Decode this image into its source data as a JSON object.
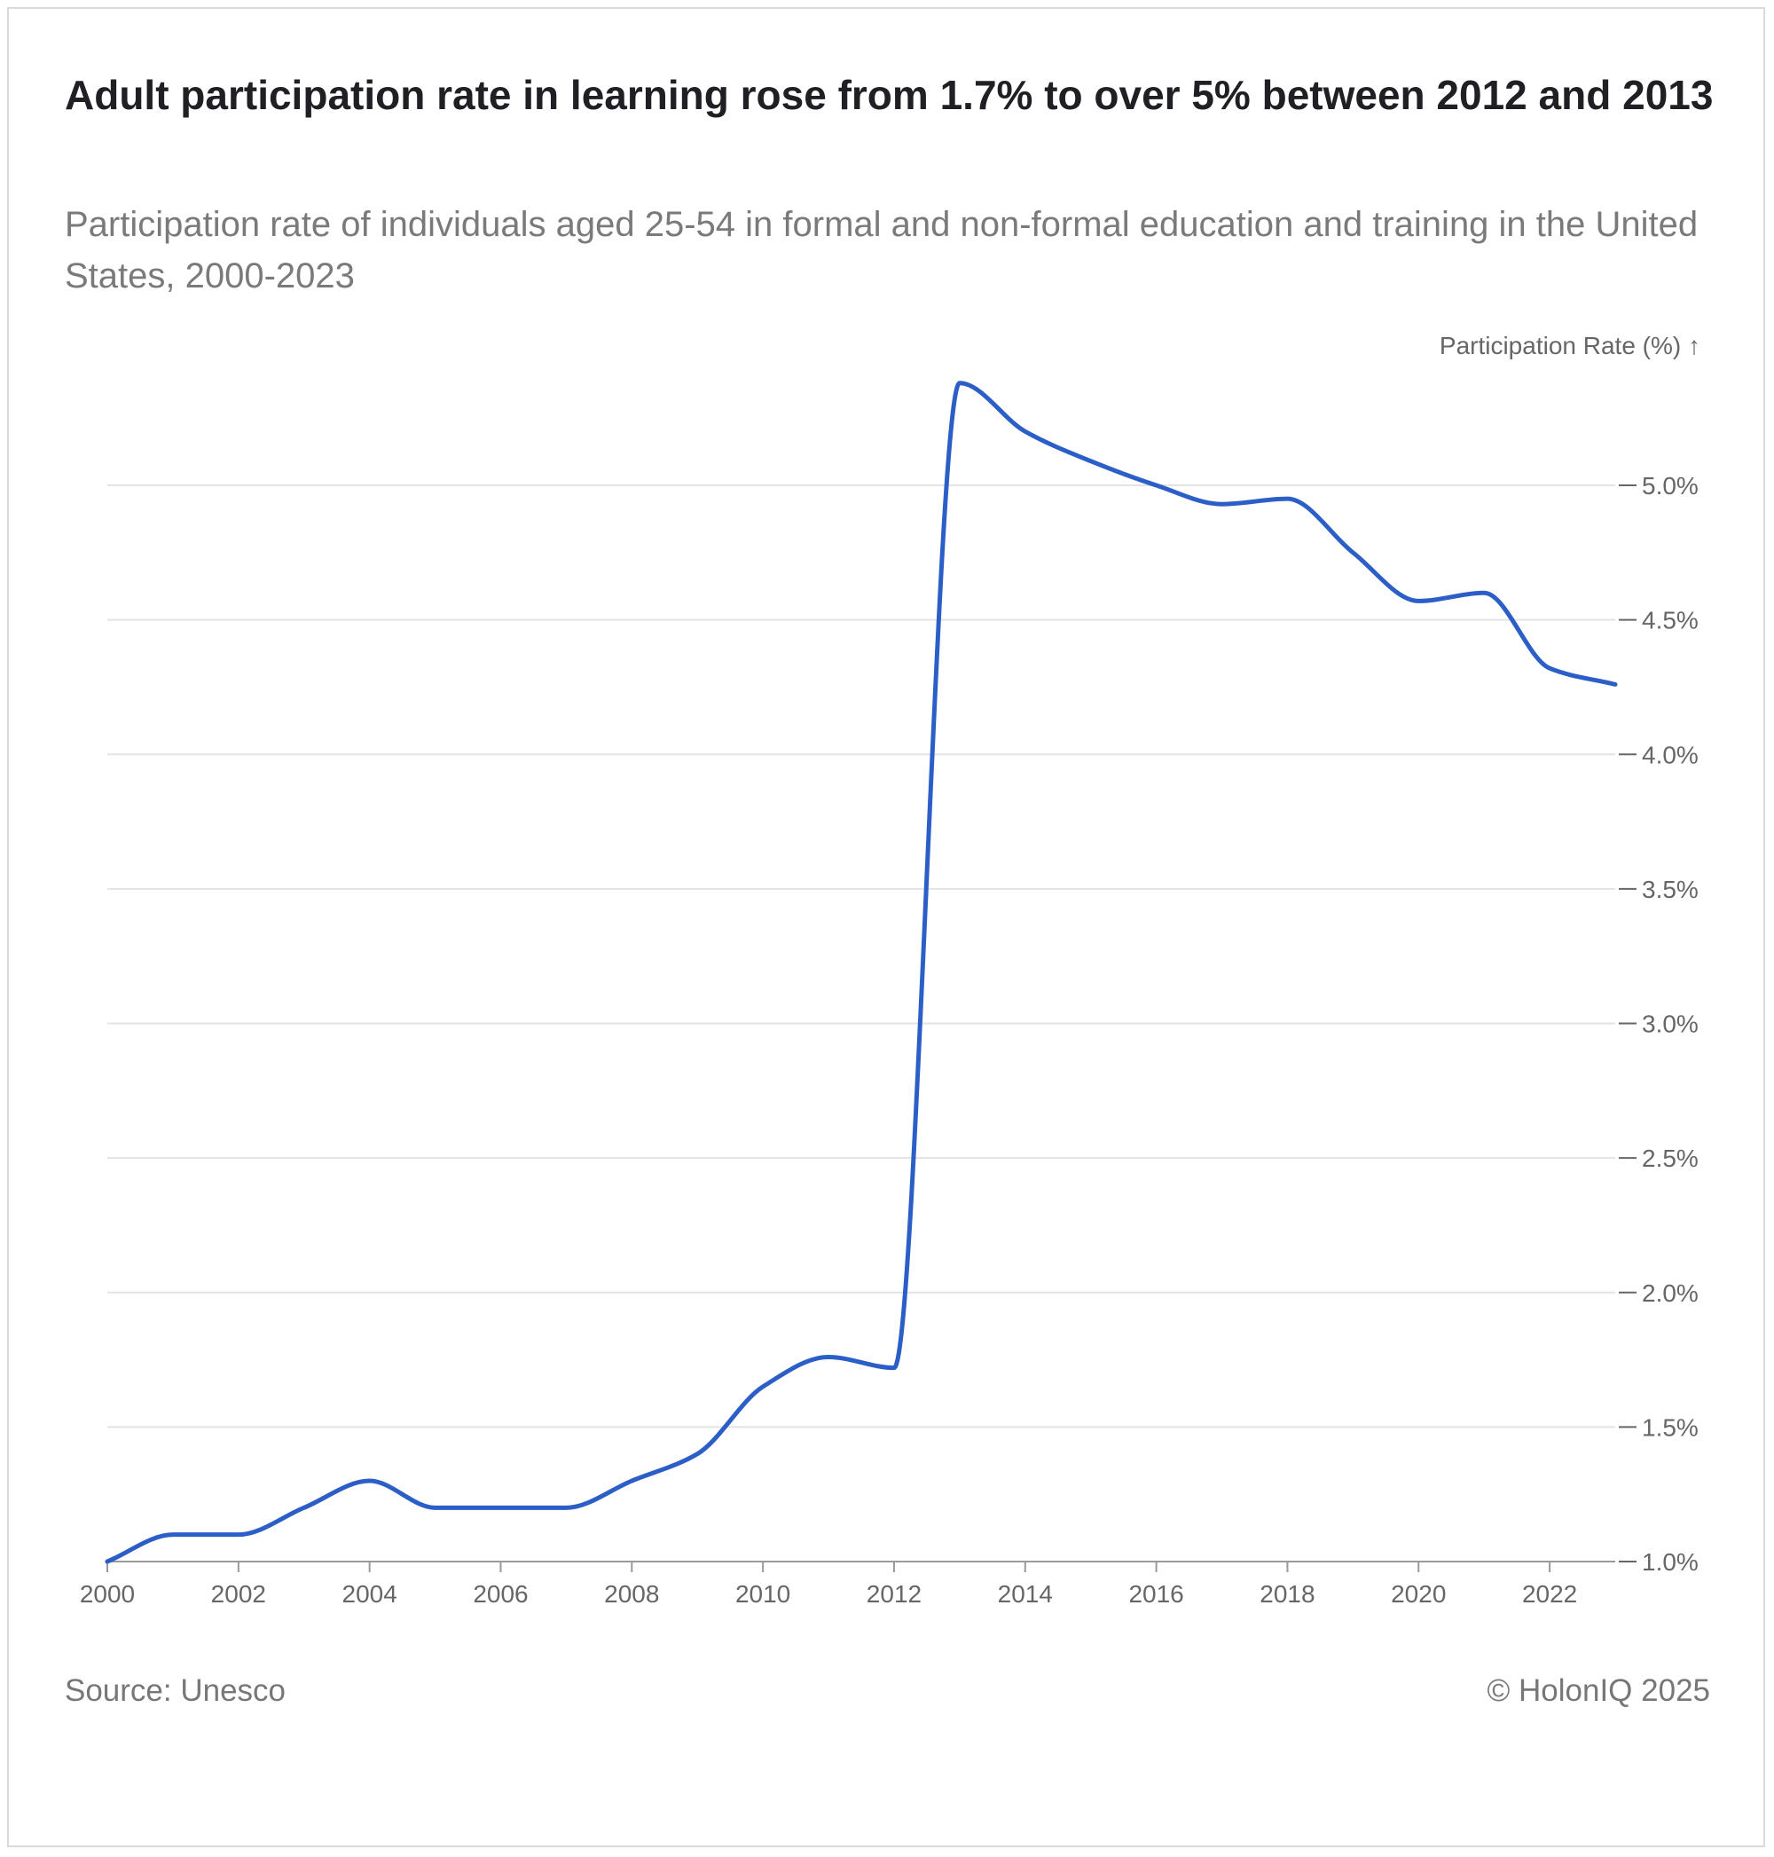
{
  "header": {
    "title": "Adult participation rate in learning rose from 1.7% to over 5% between 2012 and 2013",
    "subtitle": "Participation rate of individuals aged 25-54 in formal and non-formal education and training in the United States, 2000-2023"
  },
  "footer": {
    "source": "Source: Unesco",
    "copyright": "© HolonIQ 2025"
  },
  "colors": {
    "line": "#2b5fc7",
    "grid": "#e3e3e3",
    "text_muted": "#777777"
  },
  "chart_data": {
    "type": "line",
    "title": "Adult participation rate in learning rose from 1.7% to over 5% between 2012 and 2013",
    "subtitle": "Participation rate of individuals aged 25-54 in formal and non-formal education and training in the United States, 2000-2023",
    "ylabel": "Participation Rate (%) ↑",
    "xlabel": "",
    "x": [
      2000,
      2001,
      2002,
      2003,
      2004,
      2005,
      2006,
      2007,
      2008,
      2009,
      2010,
      2011,
      2012,
      2013,
      2014,
      2015,
      2016,
      2017,
      2018,
      2019,
      2020,
      2021,
      2022,
      2023
    ],
    "series": [
      {
        "values": [
          1.0,
          1.1,
          1.1,
          1.2,
          1.3,
          1.2,
          1.2,
          1.2,
          1.3,
          1.4,
          1.65,
          1.76,
          1.72,
          5.38,
          5.2,
          5.09,
          5.0,
          4.93,
          4.95,
          4.75,
          4.57,
          4.6,
          4.32,
          4.26
        ]
      }
    ],
    "xlim": [
      2000,
      2023
    ],
    "ylim": [
      1.0,
      5.0
    ],
    "x_ticks": [
      "2000",
      "2002",
      "2004",
      "2006",
      "2008",
      "2010",
      "2012",
      "2014",
      "2016",
      "2018",
      "2020",
      "2022"
    ],
    "y_ticks": [
      "1.0%",
      "1.5%",
      "2.0%",
      "2.5%",
      "3.0%",
      "3.5%",
      "4.0%",
      "4.5%",
      "5.0%"
    ],
    "grid": true,
    "y_axis_side": "right",
    "legend": "none"
  }
}
